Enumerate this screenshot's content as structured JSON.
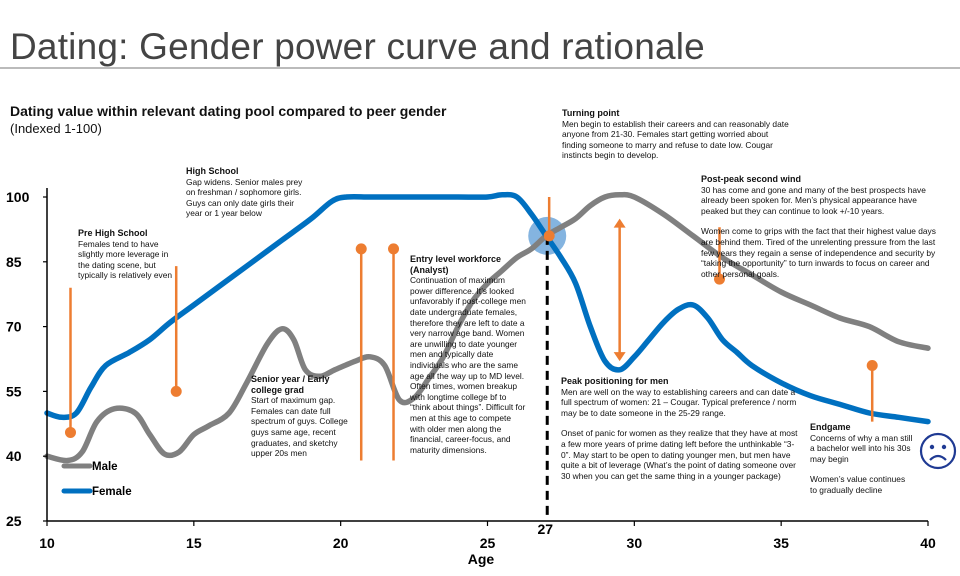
{
  "page": {
    "title": "Dating: Gender power curve and rationale"
  },
  "chart_data": {
    "type": "line",
    "title": "Dating value within relevant dating pool compared to peer gender",
    "subtitle": "(Indexed 1-100)",
    "xlabel": "Age",
    "ylabel": "",
    "xlim": [
      10,
      40
    ],
    "ylim": [
      25,
      100
    ],
    "x_ticks": [
      10,
      15,
      20,
      25,
      30,
      35,
      40
    ],
    "y_ticks": [
      25,
      40,
      55,
      70,
      85,
      100
    ],
    "highlight_tick": {
      "label": "27",
      "x": 27
    },
    "legend": {
      "position": "bottom-left",
      "entries": [
        "Male",
        "Female"
      ]
    },
    "colors": {
      "male": "#808080",
      "female": "#0070C0",
      "marker": "#ED7D31",
      "highlight": "#5B9BD5",
      "axis": "#000000"
    },
    "series": [
      {
        "name": "Male",
        "color": "#808080",
        "points": [
          [
            10,
            40
          ],
          [
            10.7,
            39
          ],
          [
            11.2,
            41
          ],
          [
            11.7,
            48
          ],
          [
            12.3,
            51
          ],
          [
            13,
            50
          ],
          [
            13.5,
            45
          ],
          [
            14,
            40.5
          ],
          [
            14.5,
            41
          ],
          [
            15,
            45
          ],
          [
            15.5,
            47
          ],
          [
            16.2,
            50
          ],
          [
            16.8,
            57
          ],
          [
            17.5,
            66
          ],
          [
            18,
            69.5
          ],
          [
            18.4,
            67
          ],
          [
            18.8,
            60
          ],
          [
            19.3,
            58.5
          ],
          [
            19.8,
            60
          ],
          [
            20.5,
            62
          ],
          [
            21,
            63
          ],
          [
            21.5,
            61
          ],
          [
            22,
            53
          ],
          [
            22.5,
            53.5
          ],
          [
            23,
            58
          ],
          [
            23.5,
            63
          ],
          [
            24,
            70
          ],
          [
            24.5,
            76
          ],
          [
            25,
            80
          ],
          [
            25.5,
            83
          ],
          [
            26,
            86
          ],
          [
            26.5,
            88
          ],
          [
            27,
            91
          ],
          [
            27.5,
            93
          ],
          [
            28,
            95
          ],
          [
            28.5,
            98
          ],
          [
            29,
            100
          ],
          [
            29.5,
            100.5
          ],
          [
            30,
            100
          ],
          [
            31,
            96
          ],
          [
            32,
            91
          ],
          [
            33,
            86
          ],
          [
            34,
            82
          ],
          [
            35,
            78
          ],
          [
            36,
            75
          ],
          [
            37,
            72
          ],
          [
            38,
            70
          ],
          [
            39,
            66.5
          ],
          [
            40,
            65
          ]
        ]
      },
      {
        "name": "Female",
        "color": "#0070C0",
        "points": [
          [
            10,
            50
          ],
          [
            10.5,
            49
          ],
          [
            11,
            50
          ],
          [
            11.5,
            56
          ],
          [
            12,
            61
          ],
          [
            12.8,
            64
          ],
          [
            13.5,
            67
          ],
          [
            14.2,
            71
          ],
          [
            15,
            75
          ],
          [
            16,
            80
          ],
          [
            17,
            85
          ],
          [
            18,
            90
          ],
          [
            19,
            95
          ],
          [
            19.7,
            99
          ],
          [
            20.2,
            100
          ],
          [
            21,
            100
          ],
          [
            22,
            100
          ],
          [
            23,
            100
          ],
          [
            24,
            100
          ],
          [
            25,
            100
          ],
          [
            25.5,
            100.5
          ],
          [
            26,
            100
          ],
          [
            26.5,
            96
          ],
          [
            27,
            91
          ],
          [
            27.5,
            86
          ],
          [
            28,
            80
          ],
          [
            28.5,
            70
          ],
          [
            29,
            62
          ],
          [
            29.5,
            60
          ],
          [
            30,
            63
          ],
          [
            30.5,
            67
          ],
          [
            31,
            71
          ],
          [
            31.5,
            74
          ],
          [
            32,
            75
          ],
          [
            32.5,
            72
          ],
          [
            33,
            67
          ],
          [
            33.5,
            64
          ],
          [
            34,
            61
          ],
          [
            35,
            57
          ],
          [
            36,
            54
          ],
          [
            37,
            52
          ],
          [
            38,
            50
          ],
          [
            39,
            49
          ],
          [
            40,
            48
          ]
        ]
      }
    ],
    "markers": [
      {
        "x": 10.8,
        "dot": 45.5,
        "top": 79,
        "style": "pin"
      },
      {
        "x": 14.4,
        "dot": 55,
        "top": 84,
        "style": "pin"
      },
      {
        "x": 20.7,
        "dot": 88,
        "bottom": 39,
        "style": "pin-top"
      },
      {
        "x": 21.8,
        "dot": 88,
        "bottom": 39,
        "style": "pin-top"
      },
      {
        "x": 27.1,
        "dot": 91,
        "top": 100,
        "style": "pin"
      },
      {
        "x": 29.5,
        "from": 95,
        "to": 62,
        "style": "double-arrow"
      },
      {
        "x": 32.9,
        "dot": 81,
        "top": 93,
        "style": "pin"
      },
      {
        "x": 38.1,
        "dot": 61,
        "bottom": 48,
        "style": "pin-top"
      }
    ],
    "crossover": {
      "x": 27,
      "y": 91
    },
    "dashed_line": {
      "x": 27,
      "from": 91,
      "to": 25
    },
    "annotations": [
      {
        "title": "Pre High School",
        "text": [
          "Females tend to have slightly more leverage in the dating scene, but typically is relatively even"
        ]
      },
      {
        "title": "High School",
        "text": [
          "Gap widens.  Senior males prey on freshman / sophomore girls.  Guys can only date girls their year or 1 year below"
        ]
      },
      {
        "title": "Senior year / Early college grad",
        "text": [
          "Start of maximum gap.  Females can date full spectrum of guys.  College guys same age, recent graduates, and sketchy upper 20s men"
        ]
      },
      {
        "title": "Entry level workforce (Analyst)",
        "text": [
          "Continuation of maximum power difference.  It’s looked unfavorably if post-college men date undergraduate females, therefore they are left to date a very narrow age band.  Women are unwilling to date younger men and typically date individuals who are the same age all the way up to MD level.  Often times, women breakup with longtime college bf to “think about things”.  Difficult for men at this age to compete with older men along the financial, career-focus, and maturity dimensions."
        ]
      },
      {
        "title": "Turning point",
        "text": [
          "Men begin to establish their careers and can reasonably date anyone from 21-30.  Females start getting worried about finding someone to marry and refuse to date low.  Cougar instincts begin to develop."
        ]
      },
      {
        "title": "Peak positioning for men",
        "text": [
          "Men are well on the way to establishing careers and can date a full spectrum of women: 21 – Cougar.  Typical preference / norm may be to date someone in the 25-29 range.",
          "Onset of panic for women as they realize that they have at most a few more years of prime dating left before the unthinkable “3-0”.  May start to be open to dating younger men, but men have quite a bit of leverage (What’s the point of dating someone over 30 when you can get the same thing in a younger package)"
        ]
      },
      {
        "title": "Post-peak second wind",
        "text": [
          "30 has come and gone and many of the best prospects have already been spoken for.  Men’s physical appearance have peaked but they can continue to look +/-10 years.",
          "Women come to grips with the fact that their highest value days are behind them.  Tired of the unrelenting pressure from the last few years they regain a sense of independence and security by “taking the opportunity” to turn inwards to focus on career and other personal goals."
        ]
      },
      {
        "title": "Endgame",
        "text": [
          "Concerns of why a man still a bachelor well into his 30s may begin",
          "Women’s value continues to gradually decline"
        ]
      }
    ],
    "icon": "sad-face-icon"
  }
}
